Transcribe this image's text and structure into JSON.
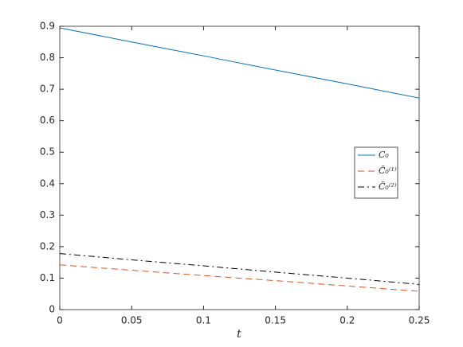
{
  "chart_data": {
    "type": "line",
    "x_label": "t",
    "x": [
      0,
      0.05,
      0.1,
      0.15,
      0.2,
      0.25
    ],
    "series": [
      {
        "name": "C₀",
        "color": "#0072bd",
        "dash": "solid",
        "values": [
          0.895,
          0.85,
          0.806,
          0.761,
          0.717,
          0.672
        ]
      },
      {
        "name": "C̃₀⁽¹⁾",
        "color": "#d95319",
        "dash": "dashed",
        "values": [
          0.142,
          0.125,
          0.108,
          0.092,
          0.075,
          0.058
        ]
      },
      {
        "name": "C̃₀⁽²⁾",
        "color": "#000000",
        "dash": "dashdot",
        "values": [
          0.178,
          0.158,
          0.139,
          0.119,
          0.1,
          0.08
        ]
      }
    ],
    "xlim": [
      0,
      0.25
    ],
    "xticks": [
      0,
      0.05,
      0.1,
      0.15,
      0.2,
      0.25
    ],
    "ylim": [
      0,
      0.9
    ],
    "yticks": [
      0,
      0.1,
      0.2,
      0.3,
      0.4,
      0.5,
      0.6,
      0.7,
      0.8,
      0.9
    ],
    "grid": false,
    "box": true,
    "legend": "east"
  }
}
